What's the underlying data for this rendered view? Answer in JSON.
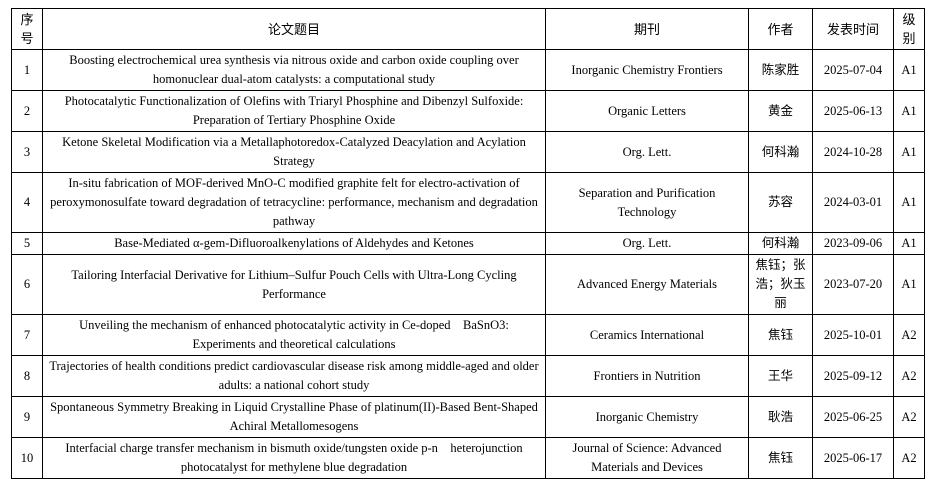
{
  "table": {
    "headers": {
      "no": "序号",
      "title": "论文题目",
      "journal": "期刊",
      "author": "作者",
      "date": "发表时间",
      "level": "级别"
    },
    "rows": [
      {
        "no": "1",
        "title": "Boosting electrochemical urea synthesis via nitrous oxide and carbon oxide coupling over homonuclear dual-atom catalysts: a computational study",
        "journal": "Inorganic Chemistry Frontiers",
        "author": "陈家胜",
        "date": "2025-07-04",
        "level": "A1"
      },
      {
        "no": "2",
        "title": "Photocatalytic Functionalization of Olefins with Triaryl Phosphine and Dibenzyl Sulfoxide: Preparation of Tertiary Phosphine Oxide",
        "journal": "Organic Letters",
        "author": "黄金",
        "date": "2025-06-13",
        "level": "A1"
      },
      {
        "no": "3",
        "title": "Ketone Skeletal Modification via a Metallaphotoredox-Catalyzed Deacylation and Acylation Strategy",
        "journal": "Org. Lett.",
        "author": "何科瀚",
        "date": "2024-10-28",
        "level": "A1"
      },
      {
        "no": "4",
        "title": "In-situ fabrication of MOF-derived MnO-C modified graphite felt for electro-activation of peroxymonosulfate toward degradation of tetracycline: performance, mechanism and degradation pathway",
        "journal": "Separation and Purification Technology",
        "author": "苏容",
        "date": "2024-03-01",
        "level": "A1"
      },
      {
        "no": "5",
        "title": "Base-Mediated α-gem-Difluoroalkenylations of Aldehydes and Ketones",
        "journal": "Org. Lett.",
        "author": "何科瀚",
        "date": "2023-09-06",
        "level": "A1"
      },
      {
        "no": "6",
        "title": "Tailoring Interfacial Derivative for Lithium–Sulfur Pouch Cells with Ultra-Long Cycling Performance",
        "journal": "Advanced Energy Materials",
        "author": "焦钰；张浩；狄玉丽",
        "date": "2023-07-20",
        "level": "A1"
      },
      {
        "no": "7",
        "title": "Unveiling the mechanism of enhanced photocatalytic activity in Ce-doped　BaSnO3: Experiments and theoretical calculations",
        "journal": "Ceramics International",
        "author": "焦钰",
        "date": "2025-10-01",
        "level": "A2"
      },
      {
        "no": "8",
        "title": "Trajectories of health conditions predict cardiovascular disease risk among middle-aged and older adults: a national cohort study",
        "journal": "Frontiers in Nutrition",
        "author": "王华",
        "date": "2025-09-12",
        "level": "A2"
      },
      {
        "no": "9",
        "title": "Spontaneous Symmetry Breaking in Liquid Crystalline Phase of platinum(II)-Based Bent-Shaped Achiral Metallomesogens",
        "journal": "Inorganic Chemistry",
        "author": "耿浩",
        "date": "2025-06-25",
        "level": "A2"
      },
      {
        "no": "10",
        "title": "Interfacial charge transfer mechanism in bismuth oxide/tungsten oxide p-n　heterojunction photocatalyst for methylene blue degradation",
        "journal": "Journal of Science: Advanced Materials and Devices",
        "author": "焦钰",
        "date": "2025-06-17",
        "level": "A2"
      }
    ]
  }
}
